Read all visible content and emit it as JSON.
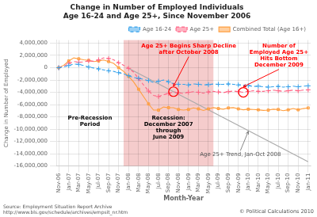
{
  "chart_data": {
    "type": "line",
    "title": "Change in Number of Employed Individuals",
    "subtitle": "Age 16-24 and Age 25+, Since November 2006",
    "xlabel": "Month-Year",
    "ylabel": "Change in Number of Employed",
    "categories": [
      "Nov-06",
      null,
      "Jan-07",
      null,
      "Mar-07",
      null,
      "May-07",
      null,
      "Jul-07",
      null,
      "Sep-07",
      null,
      "Nov-07",
      null,
      "Jan-08",
      null,
      "Mar-08",
      null,
      "May-08",
      null,
      "Jul-08",
      null,
      "Sep-08",
      null,
      "Nov-08",
      null,
      "Jan-09",
      null,
      "Mar-09",
      null,
      "May-09",
      null,
      "Jul-09",
      null,
      "Sep-09",
      null,
      "Nov-09",
      null,
      "Jan-10",
      null,
      "Mar-10",
      null,
      "May-10",
      null,
      "Jul-10",
      null,
      "Sep-10",
      null,
      "Nov-10",
      null,
      "Jan-11"
    ],
    "series": [
      {
        "name": "Age 16-24",
        "line_style": "dashed",
        "marker": "plus",
        "values": [
          0,
          150000,
          350000,
          600000,
          550000,
          350000,
          100000,
          -50000,
          -200000,
          -350000,
          -500000,
          -600000,
          -800000,
          -1000000,
          -1300000,
          -1600000,
          -1700000,
          -1900000,
          -2100000,
          -2400000,
          -2200000,
          -2000000,
          -2300000,
          -2600000,
          -2700000,
          -2700000,
          -2800000,
          -2650000,
          -2700000,
          -2800000,
          -2750000,
          -2650000,
          -2700000,
          -2700000,
          -2650000,
          -2700000,
          -2800000,
          -2850000,
          -2900000,
          -3050000,
          -3000000,
          -3100000,
          -3150000,
          -3100000,
          -3050000,
          -3150000,
          -3100000,
          -3000000,
          -3100000,
          -3000000,
          -2950000
        ]
      },
      {
        "name": "Age 25+",
        "line_style": "dashed",
        "marker": "plus",
        "values": [
          0,
          250000,
          700000,
          1000000,
          900000,
          950000,
          1100000,
          1050000,
          1300000,
          1600000,
          1500000,
          1300000,
          800000,
          400000,
          -100000,
          -700000,
          -1800000,
          -2800000,
          -3800000,
          -4500000,
          -4700000,
          -4400000,
          -4200000,
          -3900000,
          -4100000,
          -4200000,
          -4000000,
          -3900000,
          -4000000,
          -4150000,
          -3950000,
          -3850000,
          -3950000,
          -4050000,
          -3900000,
          -3800000,
          -3900000,
          -4000000,
          -3850000,
          -3750000,
          -3850000,
          -3850000,
          -3750000,
          -3650000,
          -3750000,
          -3850000,
          -3750000,
          -3650000,
          -3750000,
          -3650000,
          -3600000
        ]
      },
      {
        "name": "Combined Total (Age 16+)",
        "line_style": "solid",
        "marker": "square",
        "values": [
          0,
          400000,
          1100000,
          1600000,
          1450000,
          1300000,
          1200000,
          1000000,
          1100000,
          1250000,
          1000000,
          700000,
          0,
          -600000,
          -1400000,
          -2300000,
          -3500000,
          -4700000,
          -5900000,
          -6900000,
          -6900000,
          -6400000,
          -6500000,
          -6500000,
          -6800000,
          -6900000,
          -6800000,
          -6550000,
          -6700000,
          -6950000,
          -6700000,
          -6500000,
          -6650000,
          -6750000,
          -6550000,
          -6500000,
          -6700000,
          -6850000,
          -6750000,
          -6800000,
          -6850000,
          -6950000,
          -6900000,
          -6750000,
          -6800000,
          -7000000,
          -6850000,
          -6650000,
          -6850000,
          -6650000,
          -6550000
        ]
      }
    ],
    "ylim": [
      -16000000,
      4500000
    ],
    "yticks": [
      {
        "value": -16000000,
        "label": "-16,000,000"
      },
      {
        "value": -14000000,
        "label": "-14,000,000"
      },
      {
        "value": -12000000,
        "label": "-12,000,000"
      },
      {
        "value": -10000000,
        "label": "-10,000,000"
      },
      {
        "value": -8000000,
        "label": "-8,000,000"
      },
      {
        "value": -6000000,
        "label": "-6,000,000"
      },
      {
        "value": -4000000,
        "label": "-4,000,000"
      },
      {
        "value": -2000000,
        "label": "-2,000,000"
      },
      0,
      {
        "value": 2000000,
        "label": "2,000,000"
      },
      {
        "value": 4000000,
        "label": "4,000,000"
      }
    ],
    "grid": true,
    "legend": "upper right",
    "shaded_period": {
      "from": 13,
      "to": 31,
      "color": "#f5cccc",
      "text": "Recession:\nDecember 2007\nthrough\nJune 2009"
    },
    "trend_line": {
      "index": [
        14,
        50
      ],
      "values": [
        -100000,
        -15300000
      ],
      "color": "#aaaaaa",
      "label": "Age 25+ Trend, Jan-Oct 2008",
      "points_to": 38
    },
    "annotations": [
      {
        "text": "Age 25+ Begins Sharp Decline\nafter October 2008",
        "series": "Age 25+",
        "index": 23,
        "color": "red"
      },
      {
        "text": "Number of\nEmployed Age 25+\nHits Bottom\nDecember 2009",
        "series": "Age 25+",
        "index": 37,
        "color": "red"
      }
    ],
    "texts": [
      "Pre-Recession\nPeriod"
    ],
    "source": "Source: Employment Situation Report Archive\nhttp://www.bls.gov/schedule/archives/empsit_nr.htm",
    "copyright": "© Political Calculations 2010"
  }
}
